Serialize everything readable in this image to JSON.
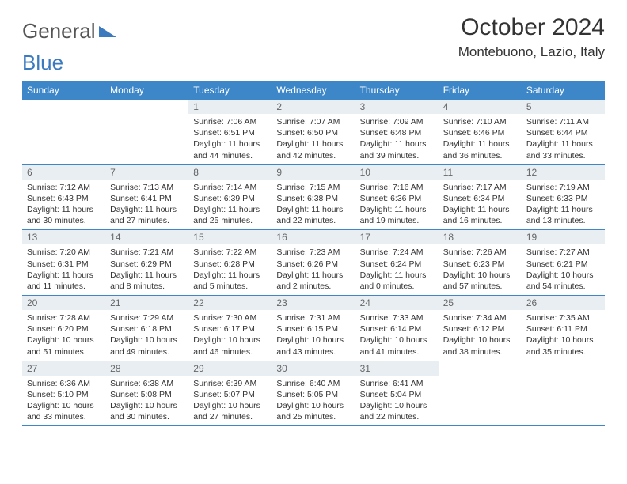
{
  "logo": {
    "text1": "General",
    "text2": "Blue"
  },
  "title": "October 2024",
  "location": "Montebuono, Lazio, Italy",
  "colors": {
    "header_bg": "#3d87c9",
    "header_text": "#ffffff",
    "daynum_bg": "#e9eef3",
    "daynum_text": "#666666",
    "border": "#3d87c9",
    "body_text": "#333333",
    "background": "#ffffff"
  },
  "weekdays": [
    "Sunday",
    "Monday",
    "Tuesday",
    "Wednesday",
    "Thursday",
    "Friday",
    "Saturday"
  ],
  "weeks": [
    [
      null,
      null,
      {
        "n": "1",
        "sr": "7:06 AM",
        "ss": "6:51 PM",
        "dl": "11 hours and 44 minutes."
      },
      {
        "n": "2",
        "sr": "7:07 AM",
        "ss": "6:50 PM",
        "dl": "11 hours and 42 minutes."
      },
      {
        "n": "3",
        "sr": "7:09 AM",
        "ss": "6:48 PM",
        "dl": "11 hours and 39 minutes."
      },
      {
        "n": "4",
        "sr": "7:10 AM",
        "ss": "6:46 PM",
        "dl": "11 hours and 36 minutes."
      },
      {
        "n": "5",
        "sr": "7:11 AM",
        "ss": "6:44 PM",
        "dl": "11 hours and 33 minutes."
      }
    ],
    [
      {
        "n": "6",
        "sr": "7:12 AM",
        "ss": "6:43 PM",
        "dl": "11 hours and 30 minutes."
      },
      {
        "n": "7",
        "sr": "7:13 AM",
        "ss": "6:41 PM",
        "dl": "11 hours and 27 minutes."
      },
      {
        "n": "8",
        "sr": "7:14 AM",
        "ss": "6:39 PM",
        "dl": "11 hours and 25 minutes."
      },
      {
        "n": "9",
        "sr": "7:15 AM",
        "ss": "6:38 PM",
        "dl": "11 hours and 22 minutes."
      },
      {
        "n": "10",
        "sr": "7:16 AM",
        "ss": "6:36 PM",
        "dl": "11 hours and 19 minutes."
      },
      {
        "n": "11",
        "sr": "7:17 AM",
        "ss": "6:34 PM",
        "dl": "11 hours and 16 minutes."
      },
      {
        "n": "12",
        "sr": "7:19 AM",
        "ss": "6:33 PM",
        "dl": "11 hours and 13 minutes."
      }
    ],
    [
      {
        "n": "13",
        "sr": "7:20 AM",
        "ss": "6:31 PM",
        "dl": "11 hours and 11 minutes."
      },
      {
        "n": "14",
        "sr": "7:21 AM",
        "ss": "6:29 PM",
        "dl": "11 hours and 8 minutes."
      },
      {
        "n": "15",
        "sr": "7:22 AM",
        "ss": "6:28 PM",
        "dl": "11 hours and 5 minutes."
      },
      {
        "n": "16",
        "sr": "7:23 AM",
        "ss": "6:26 PM",
        "dl": "11 hours and 2 minutes."
      },
      {
        "n": "17",
        "sr": "7:24 AM",
        "ss": "6:24 PM",
        "dl": "11 hours and 0 minutes."
      },
      {
        "n": "18",
        "sr": "7:26 AM",
        "ss": "6:23 PM",
        "dl": "10 hours and 57 minutes."
      },
      {
        "n": "19",
        "sr": "7:27 AM",
        "ss": "6:21 PM",
        "dl": "10 hours and 54 minutes."
      }
    ],
    [
      {
        "n": "20",
        "sr": "7:28 AM",
        "ss": "6:20 PM",
        "dl": "10 hours and 51 minutes."
      },
      {
        "n": "21",
        "sr": "7:29 AM",
        "ss": "6:18 PM",
        "dl": "10 hours and 49 minutes."
      },
      {
        "n": "22",
        "sr": "7:30 AM",
        "ss": "6:17 PM",
        "dl": "10 hours and 46 minutes."
      },
      {
        "n": "23",
        "sr": "7:31 AM",
        "ss": "6:15 PM",
        "dl": "10 hours and 43 minutes."
      },
      {
        "n": "24",
        "sr": "7:33 AM",
        "ss": "6:14 PM",
        "dl": "10 hours and 41 minutes."
      },
      {
        "n": "25",
        "sr": "7:34 AM",
        "ss": "6:12 PM",
        "dl": "10 hours and 38 minutes."
      },
      {
        "n": "26",
        "sr": "7:35 AM",
        "ss": "6:11 PM",
        "dl": "10 hours and 35 minutes."
      }
    ],
    [
      {
        "n": "27",
        "sr": "6:36 AM",
        "ss": "5:10 PM",
        "dl": "10 hours and 33 minutes."
      },
      {
        "n": "28",
        "sr": "6:38 AM",
        "ss": "5:08 PM",
        "dl": "10 hours and 30 minutes."
      },
      {
        "n": "29",
        "sr": "6:39 AM",
        "ss": "5:07 PM",
        "dl": "10 hours and 27 minutes."
      },
      {
        "n": "30",
        "sr": "6:40 AM",
        "ss": "5:05 PM",
        "dl": "10 hours and 25 minutes."
      },
      {
        "n": "31",
        "sr": "6:41 AM",
        "ss": "5:04 PM",
        "dl": "10 hours and 22 minutes."
      },
      null,
      null
    ]
  ],
  "labels": {
    "sunrise": "Sunrise:",
    "sunset": "Sunset:",
    "daylight": "Daylight:"
  }
}
